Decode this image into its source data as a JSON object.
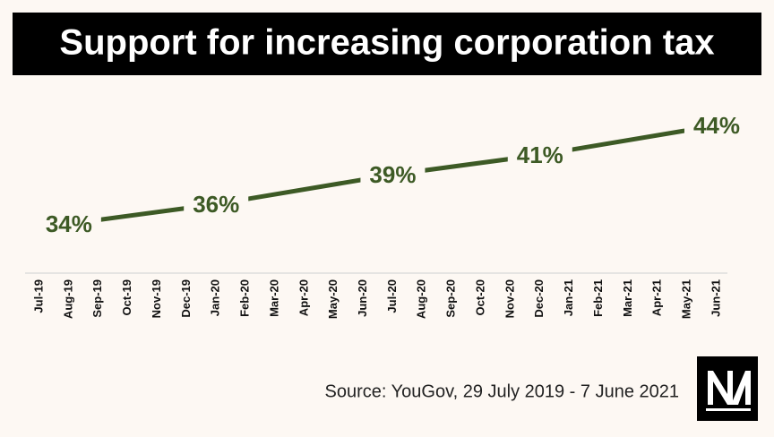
{
  "chart_data": {
    "type": "line",
    "title": "Support for increasing corporation tax",
    "categories": [
      "Jul-19",
      "Aug-19",
      "Sep-19",
      "Oct-19",
      "Nov-19",
      "Dec-19",
      "Jan-20",
      "Feb-20",
      "Mar-20",
      "Apr-20",
      "May-20",
      "Jun-20",
      "Jul-20",
      "Aug-20",
      "Sep-20",
      "Oct-20",
      "Nov-20",
      "Dec-20",
      "Jan-21",
      "Feb-21",
      "Mar-21",
      "Apr-21",
      "May-21",
      "Jun-21"
    ],
    "x": [
      "Aug-19",
      "Jan-20",
      "Jul-20",
      "Dec-20",
      "Jun-21"
    ],
    "values": [
      34,
      36,
      39,
      41,
      44
    ],
    "value_labels": [
      "34%",
      "36%",
      "39%",
      "41%",
      "44%"
    ],
    "color": "#3d5a25",
    "ylim": [
      29,
      45
    ],
    "source": "Source: YouGov, 29 July 2019 - 7 June 2021"
  }
}
